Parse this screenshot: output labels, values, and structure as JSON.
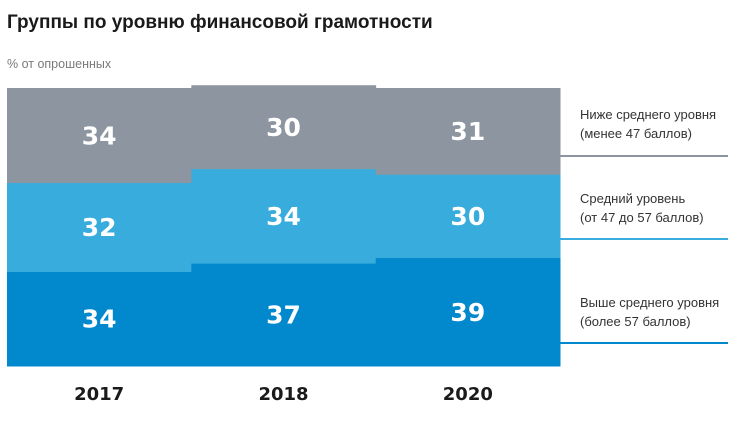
{
  "chart_data": {
    "type": "bar",
    "stacked": true,
    "title": "Группы по уровню финансовой грамотности",
    "subtitle": "% от опрошенных",
    "xlabel": "",
    "ylabel": "",
    "ylim": [
      0,
      100
    ],
    "categories": [
      "2017",
      "2018",
      "2020"
    ],
    "series": [
      {
        "name": "Выше среднего уровня",
        "note": "(более 57 баллов)",
        "color": "#0288cc",
        "values": [
          34,
          37,
          39
        ]
      },
      {
        "name": "Средний уровень",
        "note": "(от 47 до 57 баллов)",
        "color": "#38acdc",
        "values": [
          32,
          34,
          30
        ]
      },
      {
        "name": "Ниже среднего уровня",
        "note": "(менее 47 баллов)",
        "color": "#8d95a1",
        "values": [
          34,
          30,
          31
        ]
      }
    ],
    "legend_position": "right"
  }
}
